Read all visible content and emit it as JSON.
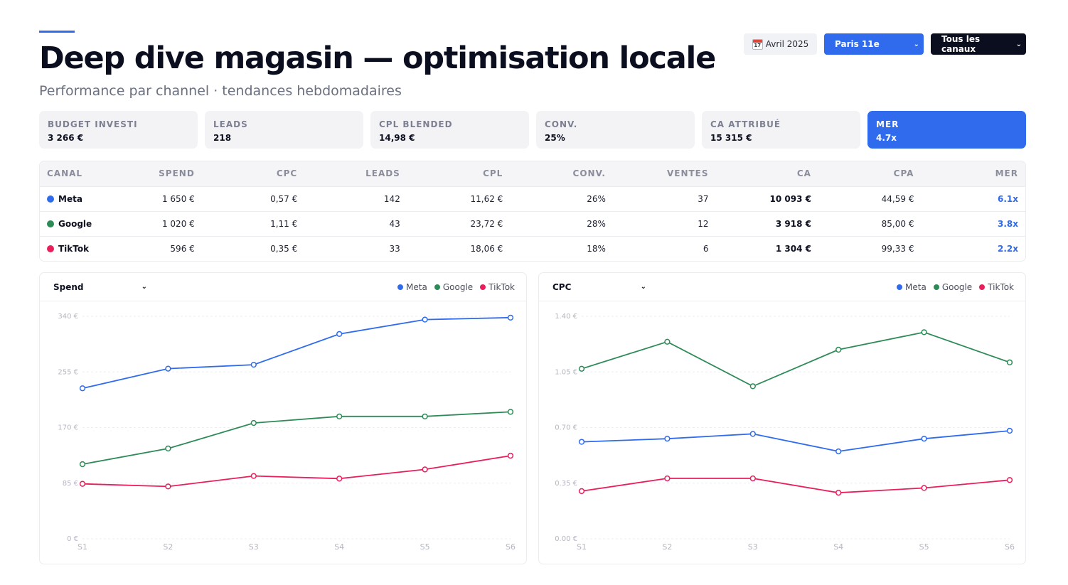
{
  "header": {
    "title": "Deep dive magasin — optimisation locale",
    "subtitle": "Performance par channel · tendances hebdomadaires"
  },
  "controls": {
    "calendar_icon_day": "17",
    "date": "Avril 2025",
    "store_select": "Paris 11e",
    "channel_select": "Tous les canaux"
  },
  "kpis": [
    {
      "label": "BUDGET INVESTI",
      "value": "3 266 €"
    },
    {
      "label": "LEADS",
      "value": "218"
    },
    {
      "label": "CPL BLENDED",
      "value": "14,98 €"
    },
    {
      "label": "CONV.",
      "value": "25%"
    },
    {
      "label": "CA ATTRIBUÉ",
      "value": "15 315 €"
    },
    {
      "label": "MER",
      "value": "4.7x",
      "active": true
    }
  ],
  "table": {
    "headers": [
      "CANAL",
      "SPEND",
      "CPC",
      "LEADS",
      "CPL",
      "CONV.",
      "VENTES",
      "CA",
      "CPA",
      "MER"
    ],
    "rows": [
      {
        "canal": "Meta",
        "color": "#2f6bec",
        "spend": "1 650 €",
        "cpc": "0,57 €",
        "leads": "142",
        "cpl": "11,62 €",
        "conv": "26%",
        "ventes": "37",
        "ca": "10 093 €",
        "cpa": "44,59 €",
        "mer": "6.1x"
      },
      {
        "canal": "Google",
        "color": "#2e8b57",
        "spend": "1 020 €",
        "cpc": "1,11 €",
        "leads": "43",
        "cpl": "23,72 €",
        "conv": "28%",
        "ventes": "12",
        "ca": "3 918 €",
        "cpa": "85,00 €",
        "mer": "3.8x"
      },
      {
        "canal": "TikTok",
        "color": "#e91e5a",
        "spend": "596 €",
        "cpc": "0,35 €",
        "leads": "33",
        "cpl": "18,06 €",
        "conv": "18%",
        "ventes": "6",
        "ca": "1 304 €",
        "cpa": "99,33 €",
        "mer": "2.2x"
      }
    ]
  },
  "chart_data": [
    {
      "type": "line",
      "metric_select": "Spend",
      "x": [
        "S1",
        "S2",
        "S3",
        "S4",
        "S5",
        "S6"
      ],
      "ylim": [
        0,
        340
      ],
      "yticks": [
        0,
        85,
        170,
        255,
        340
      ],
      "ytick_labels": [
        "0 €",
        "85 €",
        "170 €",
        "255 €",
        "340 €"
      ],
      "legend": "top-right",
      "grid": true,
      "series": [
        {
          "name": "Meta",
          "color": "#2f6bec",
          "values": [
            230,
            260,
            266,
            313,
            335,
            338
          ]
        },
        {
          "name": "Google",
          "color": "#2e8b57",
          "values": [
            114,
            138,
            177,
            187,
            187,
            194
          ]
        },
        {
          "name": "TikTok",
          "color": "#e91e5a",
          "values": [
            84,
            80,
            96,
            92,
            106,
            127
          ]
        }
      ]
    },
    {
      "type": "line",
      "metric_select": "CPC",
      "x": [
        "S1",
        "S2",
        "S3",
        "S4",
        "S5",
        "S6"
      ],
      "ylim": [
        0,
        1.4
      ],
      "yticks": [
        0,
        0.35,
        0.7,
        1.05,
        1.4
      ],
      "ytick_labels": [
        "0.00 €",
        "0.35 €",
        "0.70 €",
        "1.05 €",
        "1.40 €"
      ],
      "legend": "top-right",
      "grid": true,
      "series": [
        {
          "name": "Meta",
          "color": "#2f6bec",
          "values": [
            0.61,
            0.63,
            0.66,
            0.55,
            0.63,
            0.68
          ]
        },
        {
          "name": "Google",
          "color": "#2e8b57",
          "values": [
            1.07,
            1.24,
            0.96,
            1.19,
            1.3,
            1.11
          ]
        },
        {
          "name": "TikTok",
          "color": "#e91e5a",
          "values": [
            0.3,
            0.38,
            0.38,
            0.29,
            0.32,
            0.37
          ]
        }
      ]
    }
  ]
}
